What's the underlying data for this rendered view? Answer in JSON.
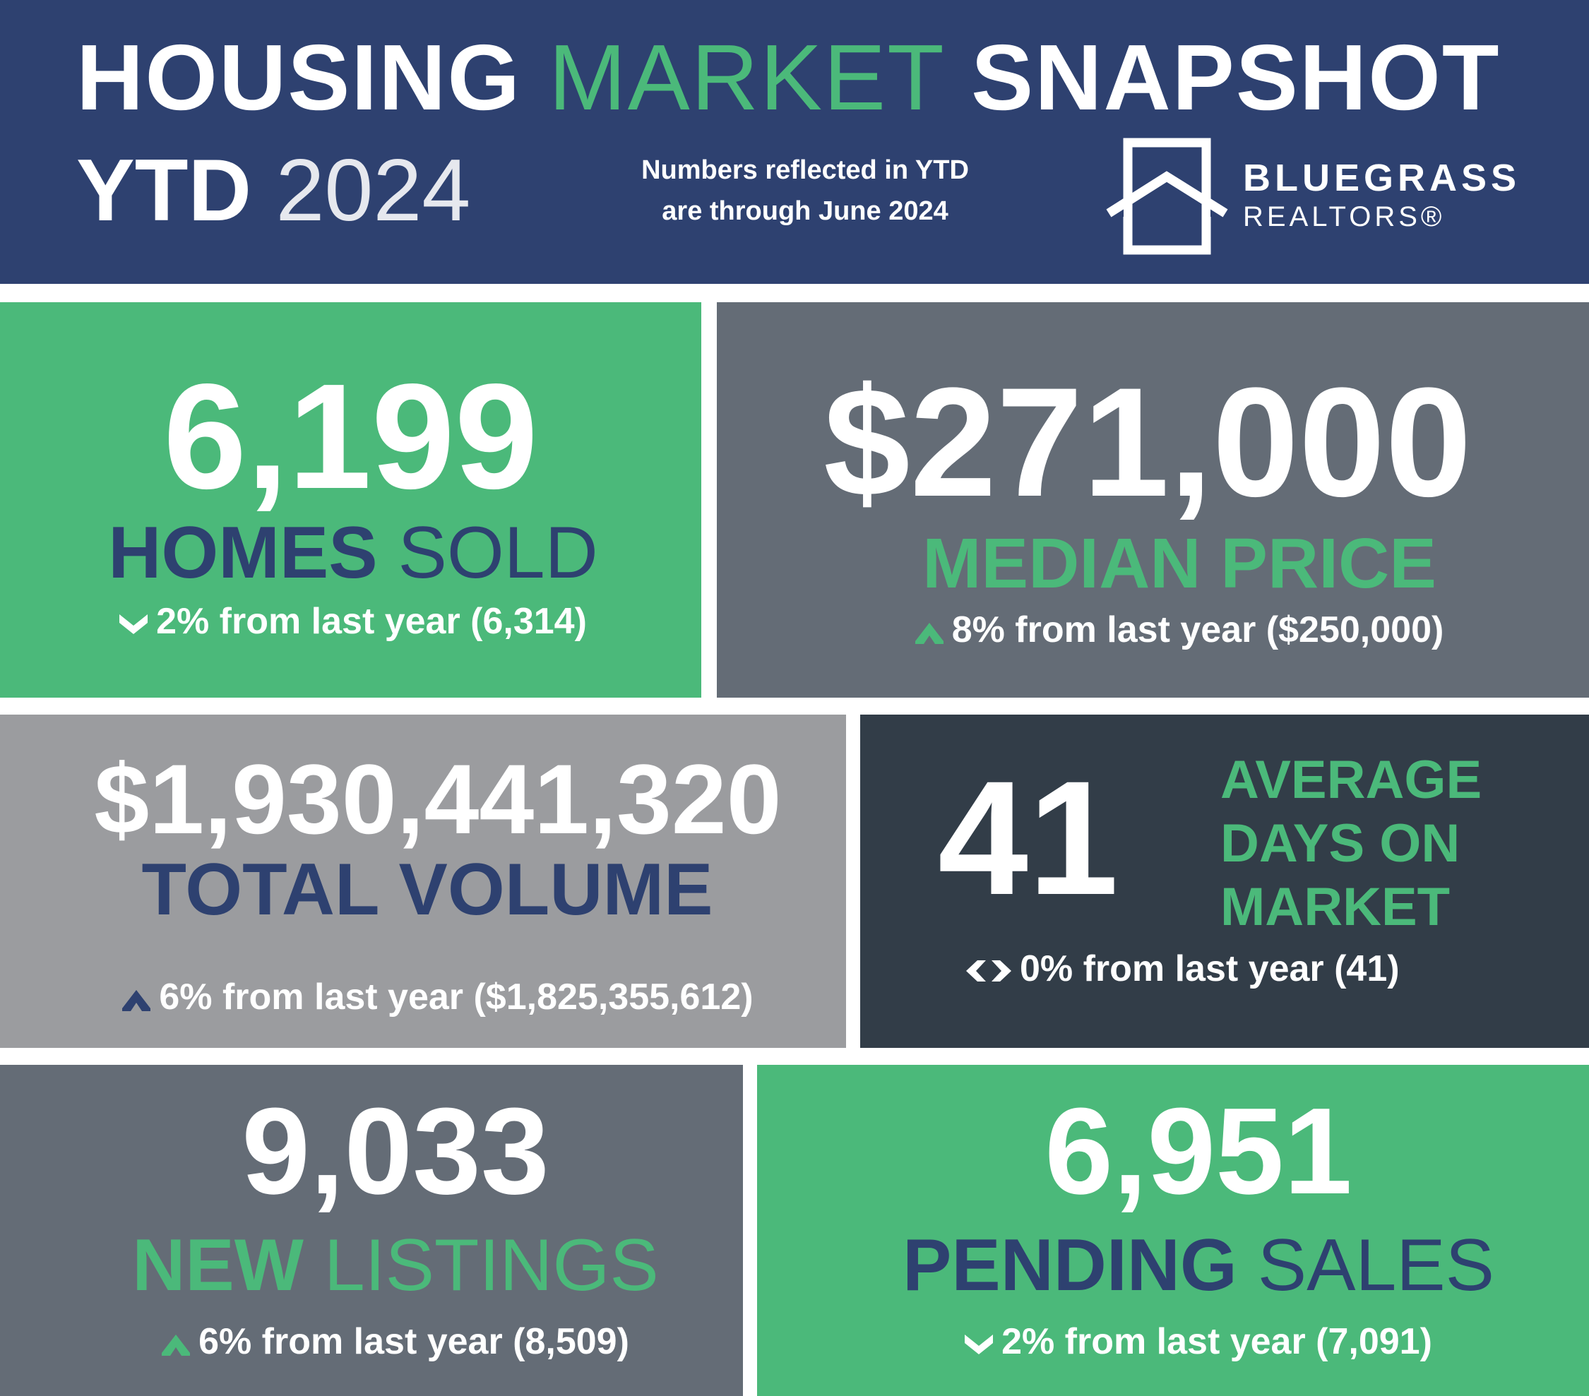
{
  "header": {
    "title_word1": "HOUSING",
    "title_word2": "MARKET",
    "title_word3": "SNAPSHOT",
    "period_label": "YTD",
    "year": "2024",
    "note_line1": "Numbers reflected in YTD",
    "note_line2": "are through June 2024",
    "brand_line1": "BLUEGRASS",
    "brand_line2": "REALTORS®"
  },
  "colors": {
    "navy": "#2e4170",
    "green": "#4bb97a",
    "slate": "#646c76",
    "gray": "#9b9c9f",
    "charcoal": "#323d48",
    "white": "#ffffff"
  },
  "stats": {
    "homes_sold": {
      "value": "6,199",
      "label_bold": "HOMES",
      "label_light": "SOLD",
      "change": "2% from last year (6,314)",
      "direction": "down"
    },
    "median_price": {
      "value": "$271,000",
      "label": "MEDIAN PRICE",
      "change": "8% from last year ($250,000)",
      "direction": "up"
    },
    "total_volume": {
      "value": "$1,930,441,320",
      "label": "TOTAL VOLUME",
      "change": "6% from last year ($1,825,355,612)",
      "direction": "up"
    },
    "days_on_market": {
      "value": "41",
      "label_line1": "AVERAGE",
      "label_line2": "DAYS ON",
      "label_line3": "MARKET",
      "change": "0% from last year (41)",
      "direction": "flat"
    },
    "new_listings": {
      "value": "9,033",
      "label_bold": "NEW",
      "label_light": "LISTINGS",
      "change": "6% from last year (8,509)",
      "direction": "up"
    },
    "pending_sales": {
      "value": "6,951",
      "label_bold": "PENDING",
      "label_light": "SALES",
      "change": "2% from last year (7,091)",
      "direction": "down"
    }
  }
}
